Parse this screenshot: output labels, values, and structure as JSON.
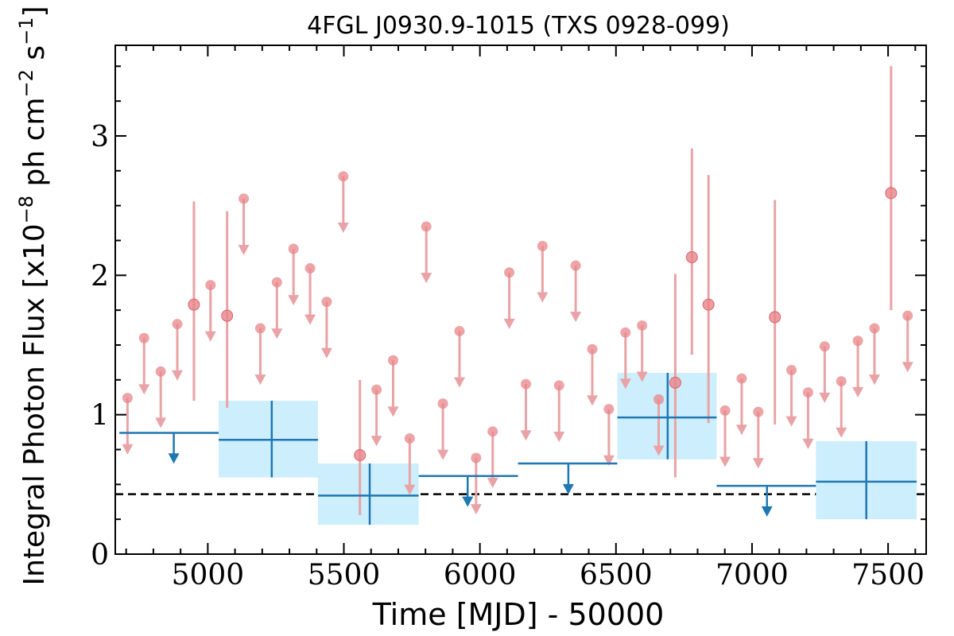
{
  "chart_data": {
    "type": "scatter",
    "title": "4FGL J0930.9-1015 (TXS 0928-099)",
    "xlabel": "Time [MJD] - 50000",
    "ylabel_main": "Integral Photon Flux [x10",
    "ylabel_exp1": "−8",
    "ylabel_mid": " ph cm",
    "ylabel_exp2": "−2",
    "ylabel_mid2": " s",
    "ylabel_exp3": "−1",
    "ylabel_end": "]",
    "xlim": [
      4660,
      7640
    ],
    "ylim": [
      0,
      3.65
    ],
    "xticks": [
      5000,
      5500,
      6000,
      6500,
      7000,
      7500
    ],
    "yticks": [
      0,
      1,
      2,
      3
    ],
    "colors": {
      "fine_points": "#e8858a",
      "fine_errorbar": "#e9a3a6",
      "coarse_line": "#1f77b4",
      "coarse_box": "#cdeefc",
      "baseline": "#000000"
    },
    "baseline_flux": 0.43,
    "series": [
      {
        "bin_width": 61,
        "upper_limits": [
          {
            "x": 4705,
            "y": 1.12
          },
          {
            "x": 4766,
            "y": 1.55
          },
          {
            "x": 4827,
            "y": 1.31
          },
          {
            "x": 4888,
            "y": 1.65
          },
          {
            "x": 5010,
            "y": 1.93
          },
          {
            "x": 5132,
            "y": 2.55
          },
          {
            "x": 5193,
            "y": 1.62
          },
          {
            "x": 5254,
            "y": 1.95
          },
          {
            "x": 5315,
            "y": 2.19
          },
          {
            "x": 5376,
            "y": 2.05
          },
          {
            "x": 5437,
            "y": 1.81
          },
          {
            "x": 5498,
            "y": 2.71
          },
          {
            "x": 5620,
            "y": 1.18
          },
          {
            "x": 5681,
            "y": 1.39
          },
          {
            "x": 5742,
            "y": 0.83
          },
          {
            "x": 5803,
            "y": 2.35
          },
          {
            "x": 5864,
            "y": 1.08
          },
          {
            "x": 5925,
            "y": 1.6
          },
          {
            "x": 5986,
            "y": 0.69
          },
          {
            "x": 6047,
            "y": 0.88
          },
          {
            "x": 6108,
            "y": 2.02
          },
          {
            "x": 6169,
            "y": 1.22
          },
          {
            "x": 6230,
            "y": 2.21
          },
          {
            "x": 6291,
            "y": 1.21
          },
          {
            "x": 6352,
            "y": 2.07
          },
          {
            "x": 6413,
            "y": 1.47
          },
          {
            "x": 6474,
            "y": 1.04
          },
          {
            "x": 6535,
            "y": 1.59
          },
          {
            "x": 6596,
            "y": 1.64
          },
          {
            "x": 6657,
            "y": 1.11
          },
          {
            "x": 6901,
            "y": 1.03
          },
          {
            "x": 6962,
            "y": 1.26
          },
          {
            "x": 7023,
            "y": 1.02
          },
          {
            "x": 7145,
            "y": 1.32
          },
          {
            "x": 7206,
            "y": 1.16
          },
          {
            "x": 7267,
            "y": 1.49
          },
          {
            "x": 7328,
            "y": 1.24
          },
          {
            "x": 7389,
            "y": 1.53
          },
          {
            "x": 7450,
            "y": 1.62
          },
          {
            "x": 7572,
            "y": 1.71
          }
        ],
        "detections": [
          {
            "x": 4949,
            "y": 1.79,
            "ylo": 1.1,
            "yhi": 2.53
          },
          {
            "x": 5071,
            "y": 1.71,
            "ylo": 1.05,
            "yhi": 2.46
          },
          {
            "x": 5559,
            "y": 0.71,
            "ylo": 0.28,
            "yhi": 1.25
          },
          {
            "x": 6718,
            "y": 1.23,
            "ylo": 0.55,
            "yhi": 2.01
          },
          {
            "x": 6779,
            "y": 2.13,
            "ylo": 1.43,
            "yhi": 2.91
          },
          {
            "x": 6840,
            "y": 1.79,
            "ylo": 0.94,
            "yhi": 2.72
          },
          {
            "x": 7084,
            "y": 1.7,
            "ylo": 0.93,
            "yhi": 2.54
          },
          {
            "x": 7511,
            "y": 2.59,
            "ylo": 1.75,
            "yhi": 3.5
          }
        ]
      },
      {
        "bin_width": 365,
        "upper_limits": [
          {
            "x0": 4675,
            "x1": 5040,
            "y": 0.87,
            "xmark": 4875
          },
          {
            "x0": 5775,
            "x1": 6140,
            "y": 0.56,
            "xmark": 5955
          },
          {
            "x0": 6140,
            "x1": 6505,
            "y": 0.65,
            "xmark": 6325
          },
          {
            "x0": 6870,
            "x1": 7235,
            "y": 0.49,
            "xmark": 7055
          }
        ],
        "detections": [
          {
            "x0": 5040,
            "x1": 5405,
            "xc": 5235,
            "y": 0.82,
            "ylo": 0.55,
            "yhi": 1.1
          },
          {
            "x0": 5405,
            "x1": 5775,
            "xc": 5595,
            "y": 0.42,
            "ylo": 0.21,
            "yhi": 0.65
          },
          {
            "x0": 6505,
            "x1": 6870,
            "xc": 6690,
            "y": 0.98,
            "ylo": 0.68,
            "yhi": 1.3
          },
          {
            "x0": 7235,
            "x1": 7605,
            "xc": 7420,
            "y": 0.52,
            "ylo": 0.25,
            "yhi": 0.81
          }
        ]
      }
    ]
  }
}
